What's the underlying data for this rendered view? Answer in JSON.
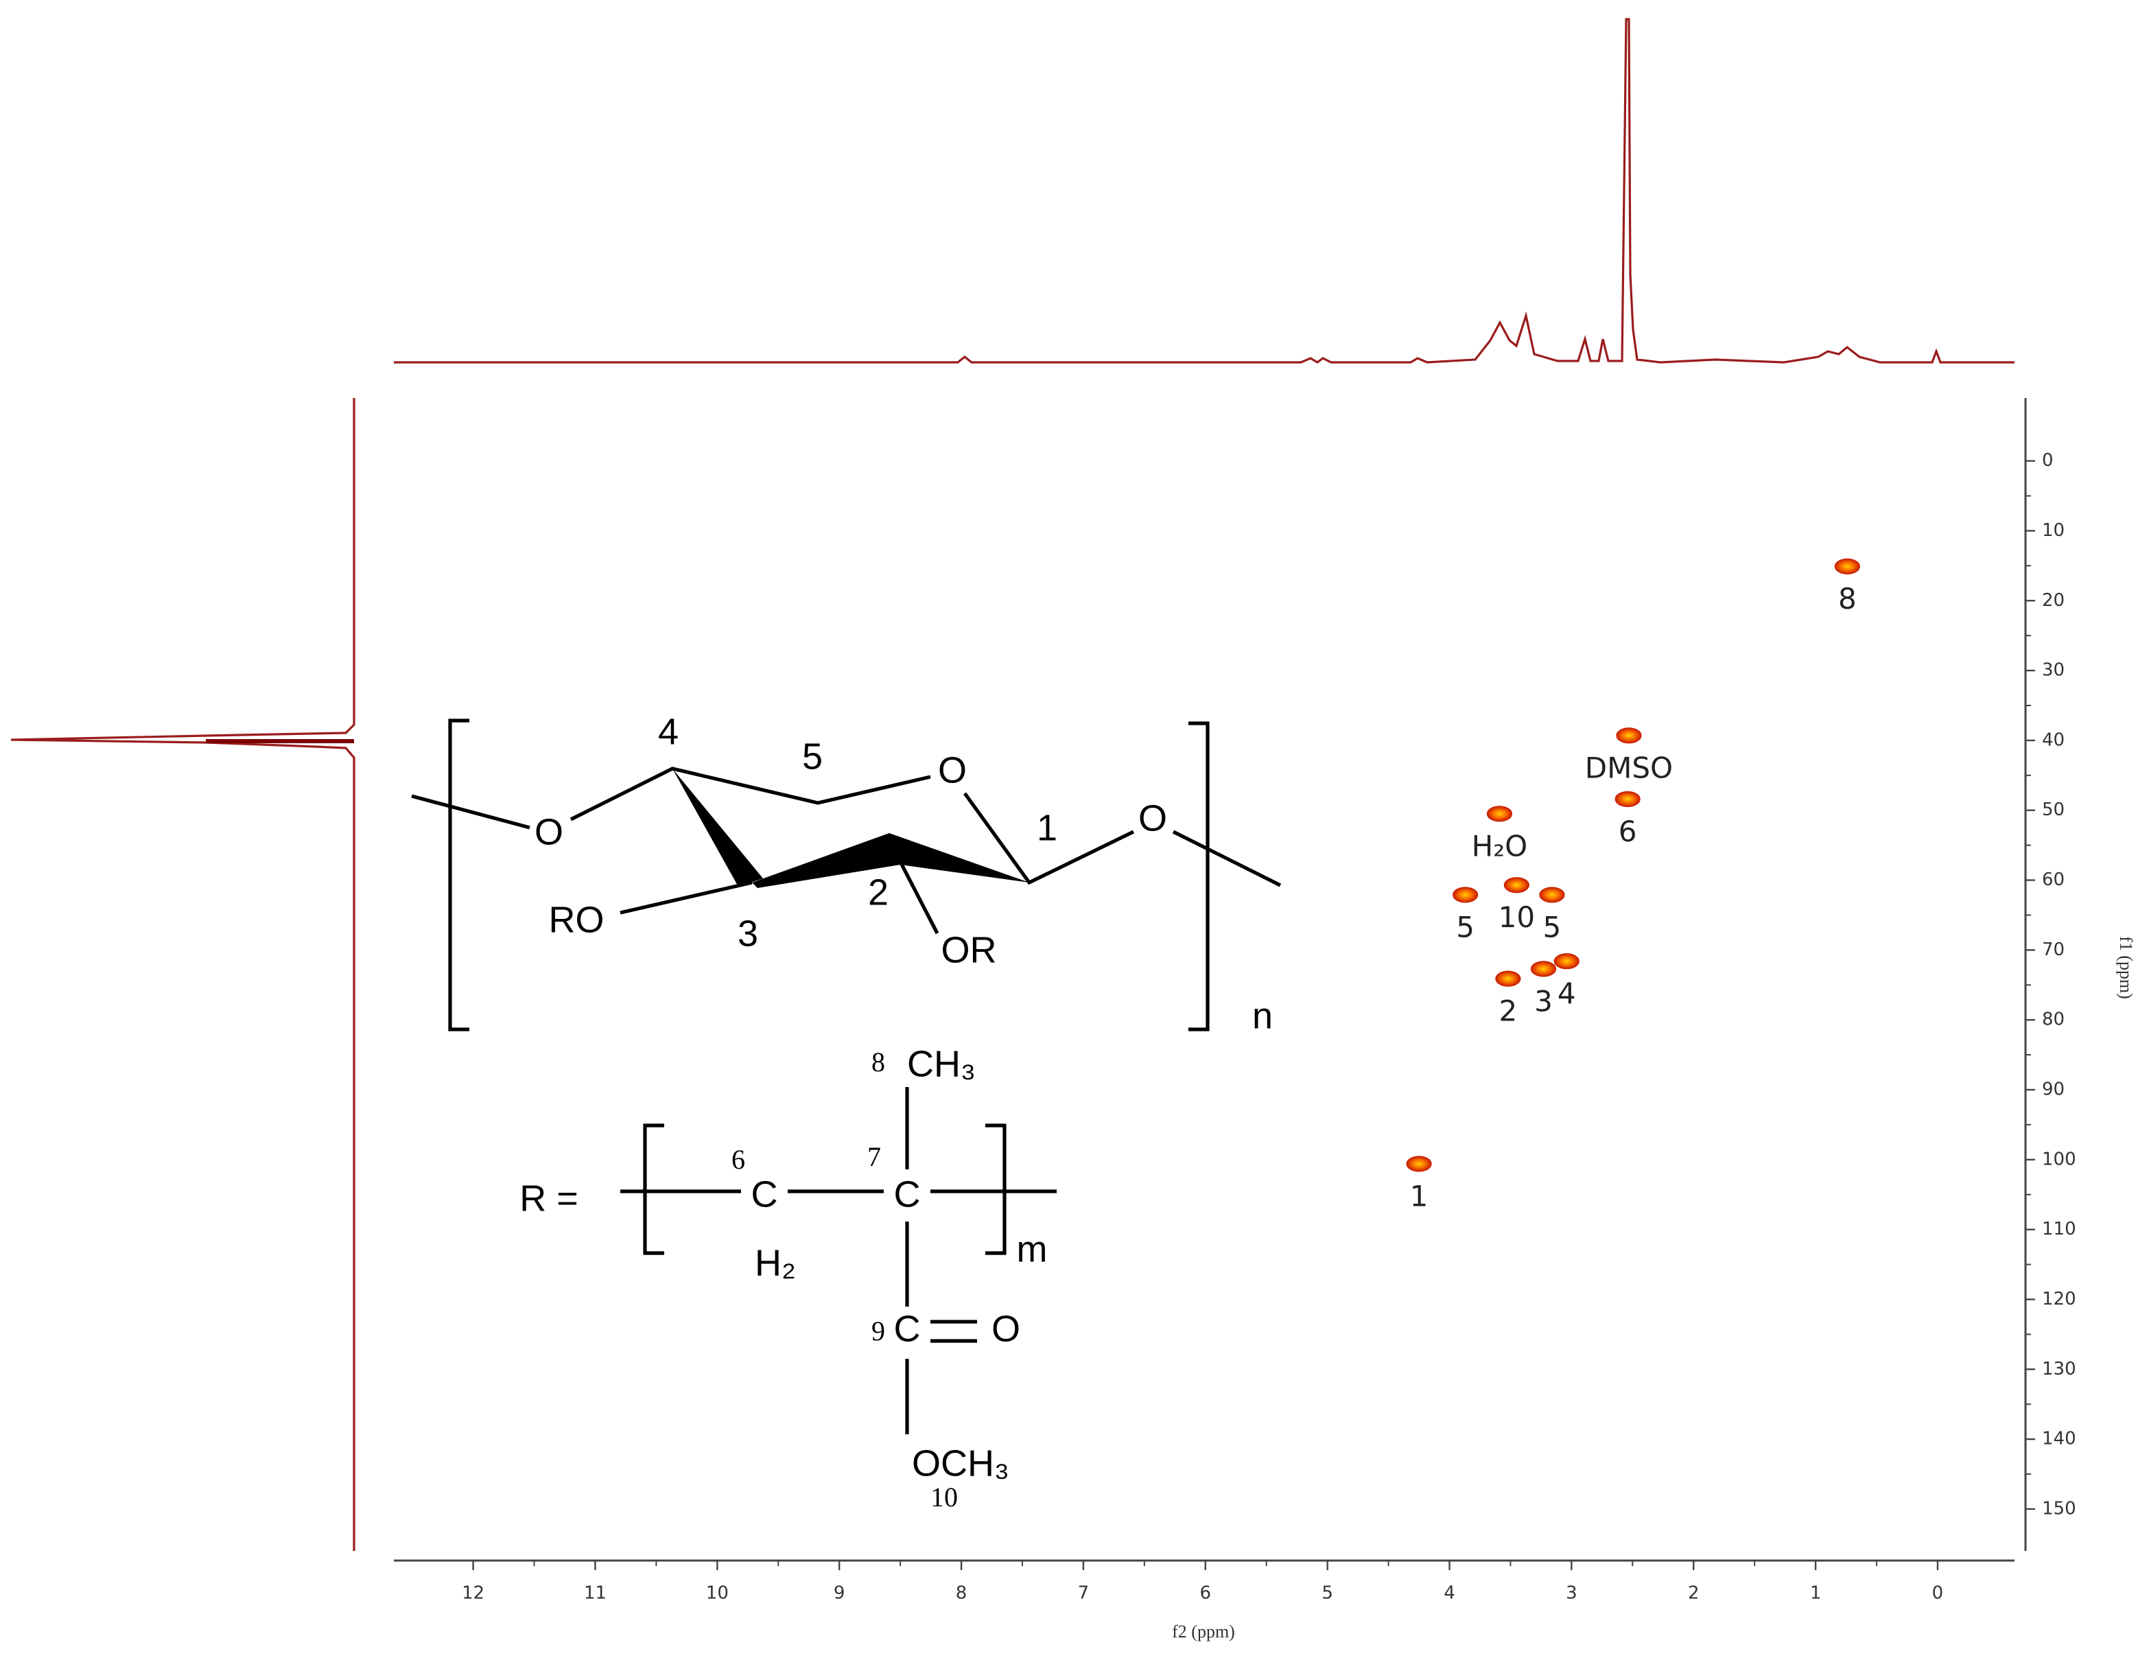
{
  "chart_data": {
    "type": "scatter",
    "x_label": "f2 (ppm)",
    "y_label": "f1 (ppm)",
    "xlim": [
      12.65,
      -0.63
    ],
    "ylim": [
      -9,
      156
    ],
    "xticks": [
      12,
      11,
      10,
      9,
      8,
      7,
      6,
      5,
      4,
      3,
      2,
      1,
      0
    ],
    "yticks": [
      0,
      10,
      20,
      30,
      40,
      50,
      60,
      70,
      80,
      90,
      100,
      110,
      120,
      130,
      140,
      150
    ],
    "x": [
      0.74,
      2.53,
      2.54,
      3.59,
      3.87,
      3.45,
      3.16,
      3.52,
      3.23,
      3.04,
      4.25
    ],
    "values": [
      15.1,
      39.3,
      48.4,
      50.5,
      62.1,
      60.7,
      62.1,
      74.1,
      72.7,
      71.6,
      100.6
    ],
    "labels": [
      "8",
      "DMSO",
      "6",
      "H₂O",
      "5",
      "10",
      "5",
      "2",
      "3",
      "4",
      "1"
    ],
    "color": "#c81e00"
  },
  "structure": {
    "labels": [
      "4",
      "5",
      "1",
      "2",
      "3",
      "O",
      "O",
      "O",
      "RO",
      "OR",
      "n",
      "R =",
      "C",
      "H₂",
      "C",
      "m",
      "CH₃",
      "C",
      "O",
      "OCH₃"
    ],
    "numbers": [
      "6",
      "7",
      "8",
      "9",
      "10"
    ]
  }
}
